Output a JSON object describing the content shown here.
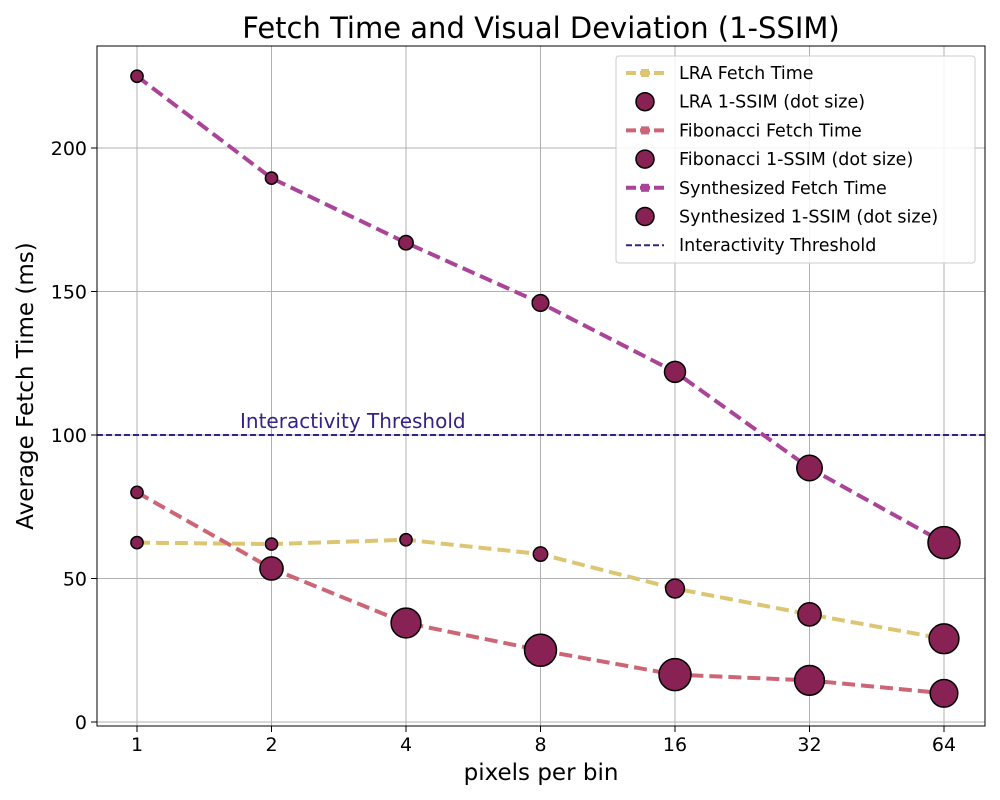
{
  "chart_data": {
    "type": "line",
    "title": "Fetch Time and Visual Deviation (1-SSIM)",
    "xlabel": "pixels per bin",
    "ylabel": "Average Fetch Time (ms)",
    "x_scale": "log2",
    "x": [
      1,
      2,
      4,
      8,
      16,
      32,
      64
    ],
    "x_tick_labels": [
      "1",
      "2",
      "4",
      "8",
      "16",
      "32",
      "64"
    ],
    "ylim": [
      0,
      225
    ],
    "y_ticks": [
      0,
      50,
      100,
      150,
      200
    ],
    "grid": true,
    "legend_position": "top-right",
    "series": [
      {
        "name": "LRA Fetch Time",
        "color": "#dcc674",
        "values": [
          62.5,
          62,
          63.5,
          58.5,
          46.5,
          37.5,
          29
        ]
      },
      {
        "name": "Fibonacci Fetch Time",
        "color": "#cc6677",
        "values": [
          80,
          53.5,
          34.5,
          25,
          16.5,
          14.5,
          10
        ]
      },
      {
        "name": "Synthesized Fetch Time",
        "color": "#aa4499",
        "values": [
          225,
          189.5,
          167,
          146,
          122,
          88.5,
          62.5
        ]
      }
    ],
    "ssim_series": [
      {
        "name": "LRA 1-SSIM (dot size)",
        "color": "#882255",
        "sizes": [
          0.01,
          0.01,
          0.01,
          0.02,
          0.04,
          0.06,
          0.09
        ]
      },
      {
        "name": "Fibonacci 1-SSIM (dot size)",
        "color": "#882255",
        "sizes": [
          0.01,
          0.06,
          0.09,
          0.1,
          0.1,
          0.09,
          0.08
        ]
      },
      {
        "name": "Synthesized 1-SSIM (dot size)",
        "color": "#882255",
        "sizes": [
          0.01,
          0.01,
          0.02,
          0.03,
          0.05,
          0.07,
          0.1
        ]
      }
    ],
    "threshold": {
      "name": "Interactivity Threshold",
      "value": 100,
      "color": "#332288",
      "label": "Interactivity Threshold"
    }
  }
}
